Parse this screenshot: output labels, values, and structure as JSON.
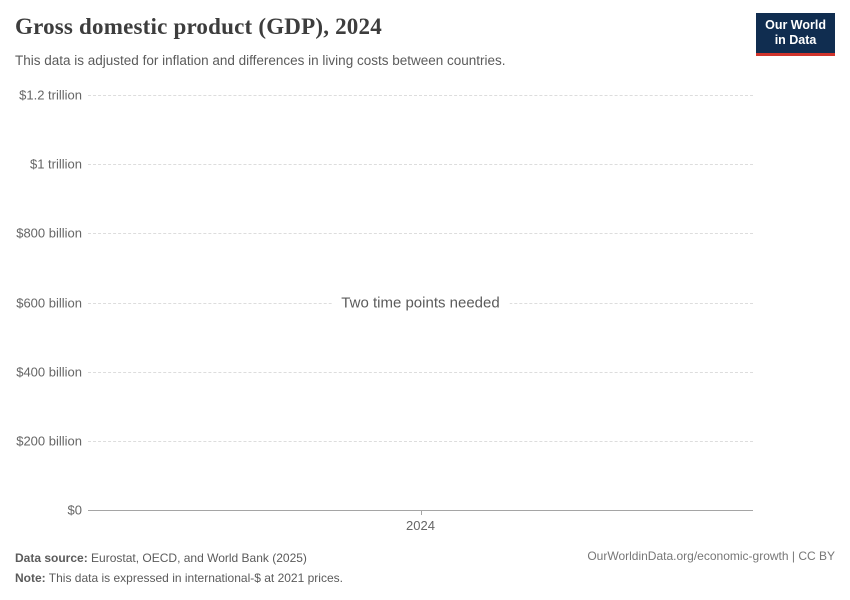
{
  "header": {
    "title": "Gross domestic product (GDP), 2024",
    "subtitle": "This data is adjusted for inflation and differences in living costs between countries.",
    "logo": {
      "line1": "Our World",
      "line2": "in Data",
      "bg_color": "#102d50",
      "accent_color": "#d0342c"
    }
  },
  "chart_data": {
    "type": "line",
    "title": "Gross domestic product (GDP), 2024",
    "series": [],
    "message": "Two time points needed",
    "yticks": [
      "$1.2 trillion",
      "$1 trillion",
      "$800 billion",
      "$600 billion",
      "$400 billion",
      "$200 billion",
      "$0"
    ],
    "ytick_values_billions": [
      1200,
      1000,
      800,
      600,
      400,
      200,
      0
    ],
    "xticks": [
      "2024"
    ],
    "ylim_billions": [
      0,
      1200
    ],
    "grid": true,
    "grid_color": "#dddddd",
    "axis_color": "#a5a5a5"
  },
  "footer": {
    "datasource_label": "Data source:",
    "datasource_text": "Eurostat, OECD, and World Bank (2025)",
    "note_label": "Note:",
    "note_text": "This data is expressed in international-$ at 2021 prices.",
    "credit": "OurWorldinData.org/economic-growth | CC BY"
  }
}
